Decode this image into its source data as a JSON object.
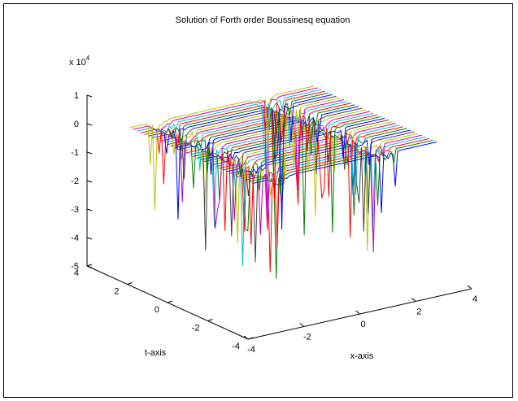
{
  "chart_data": {
    "type": "surface",
    "title": "Solution of Forth order Boussinesq equation",
    "xlabel": "x-axis",
    "ylabel": "t-axis",
    "z_exponent_base": "x 10",
    "z_exponent_power": "4",
    "x_ticks": [
      "-4",
      "-2",
      "0",
      "2",
      "4"
    ],
    "y_ticks": [
      "-4",
      "-2",
      "0",
      "2",
      "4"
    ],
    "z_ticks": [
      "-5",
      "-4",
      "-3",
      "-2",
      "-1",
      "0",
      "1"
    ],
    "xlim": [
      -4,
      4
    ],
    "ylim": [
      -4,
      4
    ],
    "zlim": [
      -5,
      1
    ],
    "z_scale": 10000,
    "baseline_z": 0,
    "spikes": [
      {
        "x": -2.2,
        "t_start": -3.1,
        "t_end": 3.0,
        "min_z": -4.5
      },
      {
        "x": 1.6,
        "t_start": -3.1,
        "t_end": 3.0,
        "min_z": -4.5
      }
    ],
    "line_count": 34,
    "line_colors": [
      "#0000ff",
      "#008000",
      "#ff0000",
      "#00bfbf",
      "#bf00bf",
      "#bfbf00",
      "#404040"
    ],
    "grid": false
  }
}
